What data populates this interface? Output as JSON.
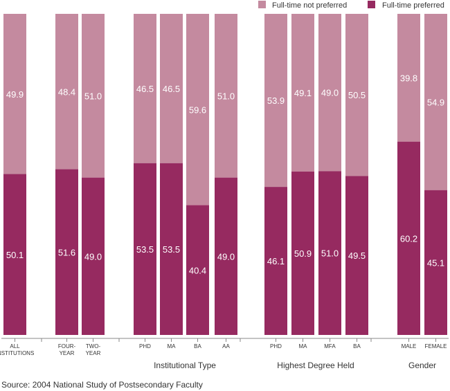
{
  "chart_data": {
    "type": "bar",
    "stacked": true,
    "orientation": "vertical",
    "ylim": [
      0,
      100
    ],
    "grid": false,
    "legend_placement": "top-right",
    "colors": {
      "not_preferred": "#c48a9f",
      "preferred": "#962a60",
      "value_text": "#ffffff",
      "tick_text": "#333333"
    },
    "legend": [
      {
        "key": "not_preferred",
        "label": "Full-time not preferred"
      },
      {
        "key": "preferred",
        "label": "Full-time preferred"
      }
    ],
    "categories": [
      {
        "label": "ALL INSTITUTIONS",
        "lines": [
          "ALL",
          "INSTITUTIONS"
        ]
      },
      {
        "label": "FOUR-YEAR",
        "lines": [
          "FOUR-",
          "YEAR"
        ]
      },
      {
        "label": "TWO-YEAR",
        "lines": [
          "TWO-",
          "YEAR"
        ]
      },
      {
        "label": "PHD",
        "lines": [
          "PHD"
        ]
      },
      {
        "label": "MA",
        "lines": [
          "MA"
        ]
      },
      {
        "label": "BA",
        "lines": [
          "BA"
        ]
      },
      {
        "label": "AA",
        "lines": [
          "AA"
        ]
      },
      {
        "label": "PHD",
        "lines": [
          "PHD"
        ]
      },
      {
        "label": "MA",
        "lines": [
          "MA"
        ]
      },
      {
        "label": "MFA",
        "lines": [
          "MFA"
        ]
      },
      {
        "label": "BA",
        "lines": [
          "BA"
        ]
      },
      {
        "label": "MALE",
        "lines": [
          "MALE"
        ]
      },
      {
        "label": "FEMALE",
        "lines": [
          "FEMALE"
        ]
      }
    ],
    "series": [
      {
        "key": "preferred",
        "name": "Full-time preferred",
        "values": [
          50.1,
          51.6,
          49.0,
          53.5,
          53.5,
          40.4,
          49.0,
          46.1,
          50.9,
          51.0,
          49.5,
          60.2,
          45.1
        ]
      },
      {
        "key": "not_preferred",
        "name": "Full-time not preferred",
        "values": [
          49.9,
          48.4,
          51.0,
          46.5,
          46.5,
          59.6,
          51.0,
          53.9,
          49.1,
          49.0,
          50.5,
          39.8,
          54.9
        ]
      }
    ],
    "groups": [
      {
        "label": "",
        "members": [
          0
        ]
      },
      {
        "label": "",
        "members": [
          1,
          2
        ]
      },
      {
        "label": "Institutional Type",
        "members": [
          3,
          4,
          5,
          6
        ]
      },
      {
        "label": "Highest Degree Held",
        "members": [
          7,
          8,
          9,
          10
        ]
      },
      {
        "label": "Gender",
        "members": [
          11,
          12
        ]
      }
    ],
    "source": "Source: 2004 National Study of Postsecondary Faculty"
  }
}
